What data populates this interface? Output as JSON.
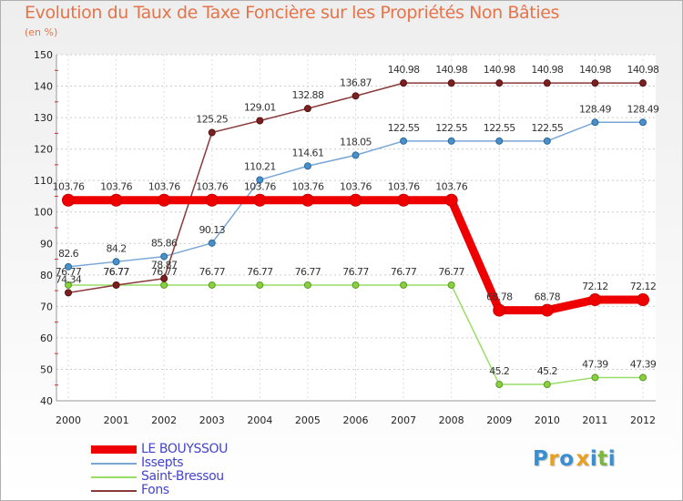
{
  "chart_data": {
    "type": "line",
    "title": "Evolution du Taux de Taxe Foncière sur les Propriétés Non Bâties",
    "unit_label": "(en %)",
    "xlabel": "",
    "ylabel": "",
    "categories": [
      "2000",
      "2001",
      "2002",
      "2003",
      "2004",
      "2005",
      "2006",
      "2007",
      "2008",
      "2009",
      "2010",
      "2011",
      "2012"
    ],
    "ylim": [
      40,
      150
    ],
    "yticks": [
      40,
      50,
      60,
      70,
      80,
      90,
      100,
      110,
      120,
      130,
      140,
      150
    ],
    "grid": true,
    "legend_position": "bottom-left",
    "series": [
      {
        "name": "LE BOUYSSOU",
        "color": "#ee0000",
        "values": [
          103.76,
          103.76,
          103.76,
          103.76,
          103.76,
          103.76,
          103.76,
          103.76,
          103.76,
          68.78,
          68.78,
          72.12,
          72.12
        ],
        "labels": [
          "103.76",
          "103.76",
          "103.76",
          "103.76",
          "103.76",
          "103.76",
          "103.76",
          "103.76",
          "103.76",
          "68.78",
          "68.78",
          "72.12",
          "72.12"
        ]
      },
      {
        "name": "Issepts",
        "color": "#7aa6d6",
        "values": [
          82.6,
          84.2,
          85.86,
          90.13,
          110.21,
          114.61,
          118.05,
          122.55,
          122.55,
          122.55,
          122.55,
          128.49,
          128.49
        ],
        "labels": [
          "82.6",
          "84.2",
          "85.86",
          "90.13",
          "110.21",
          "114.61",
          "118.05",
          "122.55",
          "122.55",
          "122.55",
          "122.55",
          "128.49",
          "128.49"
        ]
      },
      {
        "name": "Saint-Bressou",
        "color": "#99dd66",
        "values": [
          76.77,
          76.77,
          76.77,
          76.77,
          76.77,
          76.77,
          76.77,
          76.77,
          76.77,
          45.2,
          45.2,
          47.39,
          47.39
        ],
        "labels": [
          "76.77",
          "76.77",
          "76.77",
          "76.77",
          "76.77",
          "76.77",
          "76.77",
          "76.77",
          "76.77",
          "45.2",
          "45.2",
          "47.39",
          "47.39"
        ]
      },
      {
        "name": "Fons",
        "color": "#8b3a3a",
        "values": [
          74.34,
          76.77,
          78.87,
          125.25,
          129.01,
          132.88,
          136.87,
          140.98,
          140.98,
          140.98,
          140.98,
          140.98,
          140.98
        ],
        "labels": [
          "74.34",
          "76.77",
          "78.87",
          "125.25",
          "129.01",
          "132.88",
          "136.87",
          "140.98",
          "140.98",
          "140.98",
          "140.98",
          "140.98",
          "140.98"
        ]
      }
    ]
  },
  "logo": {
    "text": "Prox iti",
    "letters": [
      "P",
      "r",
      "o",
      "x",
      "i",
      "t",
      "i"
    ],
    "colors": [
      "#3a8fd0",
      "#e8a020",
      "#3a8fd0",
      "#e8a020",
      "#3a8fd0",
      "#79b83c",
      "#3a8fd0"
    ]
  }
}
